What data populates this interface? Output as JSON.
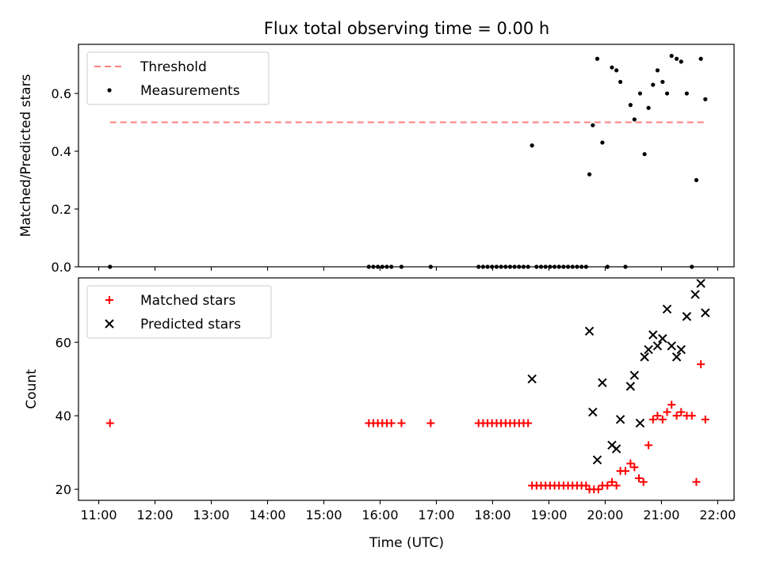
{
  "figure": {
    "title": "Flux total observing time = 0.00 h"
  },
  "colors": {
    "threshold": "#ff7f7f",
    "measurement": "#000000",
    "matched": "#ff0000",
    "predicted": "#000000"
  },
  "x_axis": {
    "label": "Time (UTC)",
    "ticks": [
      {
        "t": 11,
        "label": "11:00"
      },
      {
        "t": 12,
        "label": "12:00"
      },
      {
        "t": 13,
        "label": "13:00"
      },
      {
        "t": 14,
        "label": "14:00"
      },
      {
        "t": 15,
        "label": "15:00"
      },
      {
        "t": 16,
        "label": "16:00"
      },
      {
        "t": 17,
        "label": "17:00"
      },
      {
        "t": 18,
        "label": "18:00"
      },
      {
        "t": 19,
        "label": "19:00"
      },
      {
        "t": 20,
        "label": "20:00"
      },
      {
        "t": 21,
        "label": "21:00"
      },
      {
        "t": 22,
        "label": "22:00"
      }
    ],
    "range": [
      10.64,
      22.29
    ]
  },
  "chart_data": [
    {
      "type": "line+scatter",
      "ylabel": "Matched/Predicted stars",
      "ylim": [
        0,
        0.77
      ],
      "yticks": [
        {
          "v": 0.0,
          "label": "0.0"
        },
        {
          "v": 0.2,
          "label": "0.2"
        },
        {
          "v": 0.4,
          "label": "0.4"
        },
        {
          "v": 0.6,
          "label": "0.6"
        }
      ],
      "legend": {
        "placement": "upper-left",
        "entries": [
          {
            "name": "Threshold",
            "marker": "dashed"
          },
          {
            "name": "Measurements",
            "marker": "dot"
          }
        ]
      },
      "threshold": {
        "name": "Threshold",
        "value": 0.5,
        "x": [
          11.2,
          21.77
        ]
      },
      "series": [
        {
          "name": "Measurements",
          "points": [
            [
              11.2,
              0.0
            ],
            [
              15.8,
              0.0
            ],
            [
              15.88,
              0.0
            ],
            [
              15.96,
              0.0
            ],
            [
              16.04,
              0.0
            ],
            [
              16.12,
              0.0
            ],
            [
              16.2,
              0.0
            ],
            [
              16.38,
              0.0
            ],
            [
              16.9,
              0.0
            ],
            [
              17.75,
              0.0
            ],
            [
              17.83,
              0.0
            ],
            [
              17.91,
              0.0
            ],
            [
              17.99,
              0.0
            ],
            [
              18.07,
              0.0
            ],
            [
              18.15,
              0.0
            ],
            [
              18.23,
              0.0
            ],
            [
              18.31,
              0.0
            ],
            [
              18.39,
              0.0
            ],
            [
              18.47,
              0.0
            ],
            [
              18.55,
              0.0
            ],
            [
              18.63,
              0.0
            ],
            [
              18.7,
              0.42
            ],
            [
              18.78,
              0.0
            ],
            [
              18.86,
              0.0
            ],
            [
              18.94,
              0.0
            ],
            [
              19.02,
              0.0
            ],
            [
              19.1,
              0.0
            ],
            [
              19.18,
              0.0
            ],
            [
              19.26,
              0.0
            ],
            [
              19.34,
              0.0
            ],
            [
              19.42,
              0.0
            ],
            [
              19.5,
              0.0
            ],
            [
              19.58,
              0.0
            ],
            [
              19.66,
              0.0
            ],
            [
              19.72,
              0.32
            ],
            [
              19.78,
              0.49
            ],
            [
              19.86,
              0.72
            ],
            [
              19.95,
              0.43
            ],
            [
              20.04,
              0.0
            ],
            [
              20.12,
              0.69
            ],
            [
              20.2,
              0.68
            ],
            [
              20.27,
              0.64
            ],
            [
              20.36,
              0.0
            ],
            [
              20.45,
              0.56
            ],
            [
              20.52,
              0.51
            ],
            [
              20.62,
              0.6
            ],
            [
              20.7,
              0.39
            ],
            [
              20.77,
              0.55
            ],
            [
              20.85,
              0.63
            ],
            [
              20.93,
              0.68
            ],
            [
              21.02,
              0.64
            ],
            [
              21.1,
              0.6
            ],
            [
              21.18,
              0.73
            ],
            [
              21.27,
              0.72
            ],
            [
              21.35,
              0.71
            ],
            [
              21.45,
              0.6
            ],
            [
              21.54,
              0.0
            ],
            [
              21.62,
              0.3
            ],
            [
              21.7,
              0.72
            ],
            [
              21.78,
              0.58
            ]
          ]
        }
      ]
    },
    {
      "type": "scatter",
      "ylabel": "Count",
      "ylim": [
        17,
        77.5
      ],
      "yticks": [
        {
          "v": 20,
          "label": "20"
        },
        {
          "v": 40,
          "label": "40"
        },
        {
          "v": 60,
          "label": "60"
        }
      ],
      "legend": {
        "placement": "upper-left",
        "entries": [
          {
            "name": "Matched stars",
            "marker": "plus"
          },
          {
            "name": "Predicted stars",
            "marker": "cross"
          }
        ]
      },
      "series": [
        {
          "name": "Matched stars",
          "points": [
            [
              11.2,
              38
            ],
            [
              15.8,
              38
            ],
            [
              15.88,
              38
            ],
            [
              15.96,
              38
            ],
            [
              16.04,
              38
            ],
            [
              16.12,
              38
            ],
            [
              16.2,
              38
            ],
            [
              16.38,
              38
            ],
            [
              16.9,
              38
            ],
            [
              17.75,
              38
            ],
            [
              17.83,
              38
            ],
            [
              17.91,
              38
            ],
            [
              17.99,
              38
            ],
            [
              18.07,
              38
            ],
            [
              18.15,
              38
            ],
            [
              18.23,
              38
            ],
            [
              18.31,
              38
            ],
            [
              18.39,
              38
            ],
            [
              18.47,
              38
            ],
            [
              18.55,
              38
            ],
            [
              18.63,
              38
            ],
            [
              18.7,
              21
            ],
            [
              18.78,
              21
            ],
            [
              18.86,
              21
            ],
            [
              18.94,
              21
            ],
            [
              19.02,
              21
            ],
            [
              19.1,
              21
            ],
            [
              19.18,
              21
            ],
            [
              19.26,
              21
            ],
            [
              19.34,
              21
            ],
            [
              19.42,
              21
            ],
            [
              19.5,
              21
            ],
            [
              19.58,
              21
            ],
            [
              19.66,
              21
            ],
            [
              19.72,
              20
            ],
            [
              19.8,
              20
            ],
            [
              19.88,
              20
            ],
            [
              19.95,
              21
            ],
            [
              20.04,
              21
            ],
            [
              20.12,
              22
            ],
            [
              20.2,
              21
            ],
            [
              20.27,
              25
            ],
            [
              20.36,
              25
            ],
            [
              20.45,
              27
            ],
            [
              20.52,
              26
            ],
            [
              20.6,
              23
            ],
            [
              20.68,
              22
            ],
            [
              20.77,
              32
            ],
            [
              20.85,
              39
            ],
            [
              20.93,
              40
            ],
            [
              21.02,
              39
            ],
            [
              21.1,
              41
            ],
            [
              21.18,
              43
            ],
            [
              21.27,
              40
            ],
            [
              21.35,
              41
            ],
            [
              21.45,
              40
            ],
            [
              21.54,
              40
            ],
            [
              21.62,
              22
            ],
            [
              21.7,
              54
            ],
            [
              21.78,
              39
            ]
          ]
        },
        {
          "name": "Predicted stars",
          "points": [
            [
              18.7,
              50
            ],
            [
              19.72,
              63
            ],
            [
              19.78,
              41
            ],
            [
              19.86,
              28
            ],
            [
              19.95,
              49
            ],
            [
              20.12,
              32
            ],
            [
              20.2,
              31
            ],
            [
              20.27,
              39
            ],
            [
              20.45,
              48
            ],
            [
              20.52,
              51
            ],
            [
              20.62,
              38
            ],
            [
              20.7,
              56
            ],
            [
              20.77,
              58
            ],
            [
              20.85,
              62
            ],
            [
              20.93,
              59
            ],
            [
              21.02,
              61
            ],
            [
              21.1,
              69
            ],
            [
              21.18,
              59
            ],
            [
              21.27,
              56
            ],
            [
              21.35,
              58
            ],
            [
              21.45,
              67
            ],
            [
              21.6,
              73
            ],
            [
              21.7,
              76
            ],
            [
              21.78,
              68
            ]
          ]
        }
      ]
    }
  ]
}
